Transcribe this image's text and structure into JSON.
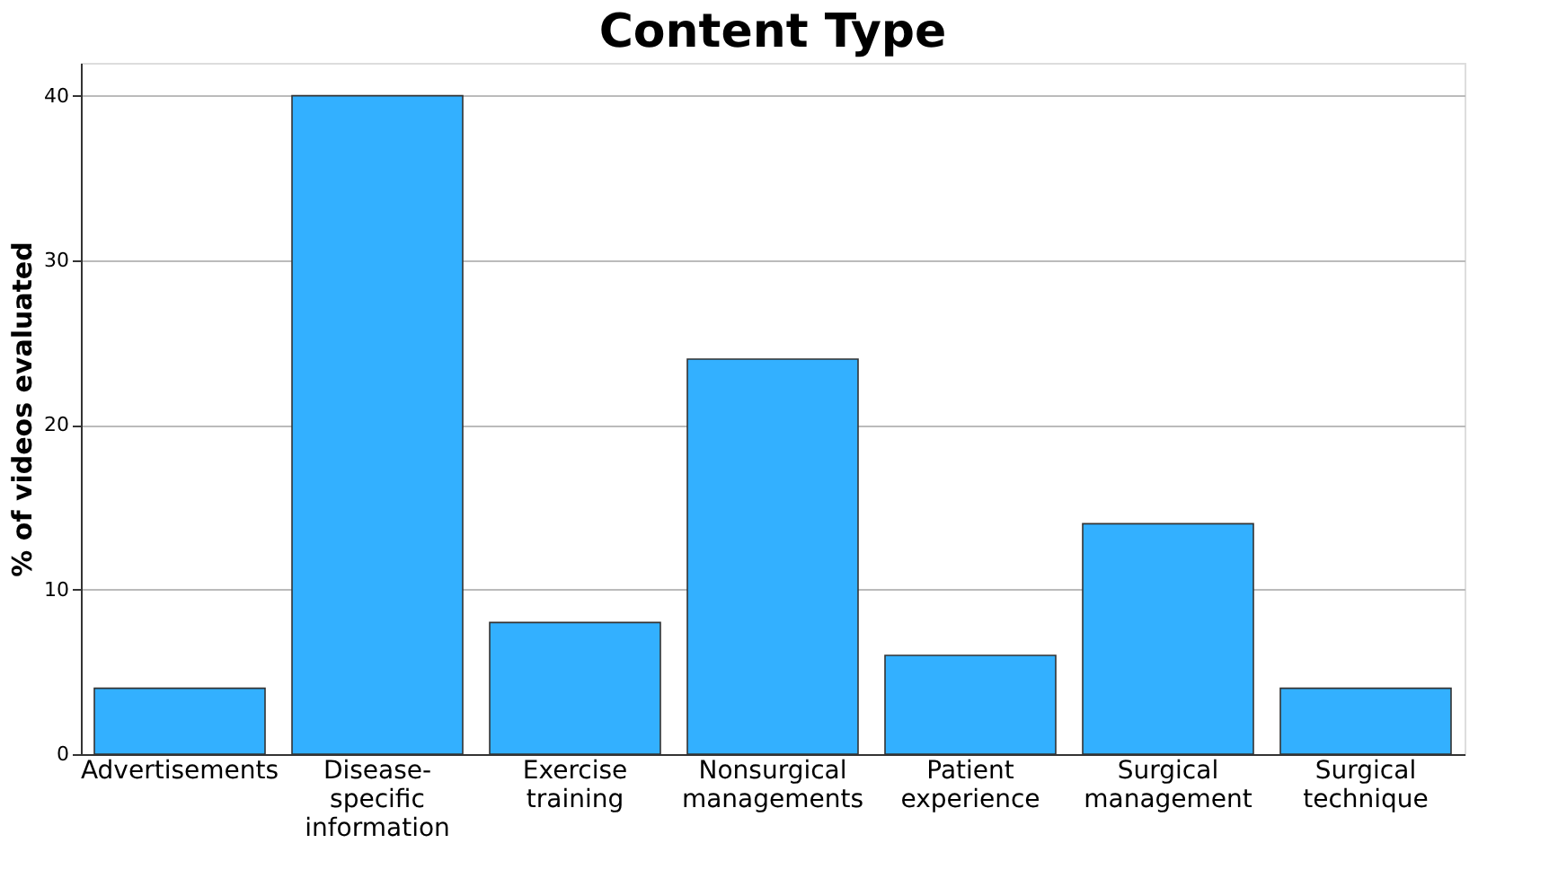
{
  "chart_data": {
    "type": "bar",
    "title": "Content Type",
    "ylabel": "% of videos evaluated",
    "categories": [
      "Advertisements",
      "Disease-specific information",
      "Exercise training",
      "Nonsurgical managements",
      "Patient experience",
      "Surgical management",
      "Surgical technique"
    ],
    "values": [
      4,
      40,
      8,
      24,
      6,
      14,
      4
    ],
    "color": "#33b0ff",
    "ylim": [
      0,
      42
    ],
    "yticks": [
      0,
      10,
      20,
      30,
      40
    ],
    "grid": "y"
  }
}
